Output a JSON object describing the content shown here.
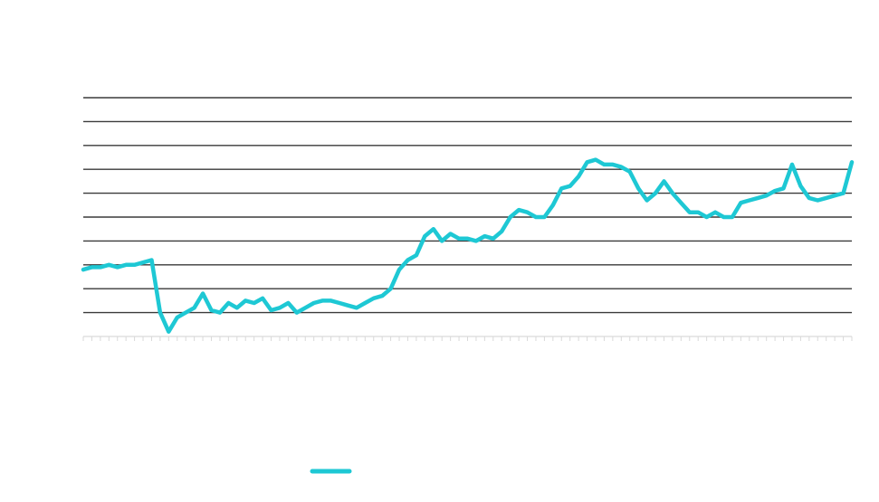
{
  "chart_data": {
    "type": "line",
    "title": "",
    "xlabel": "",
    "ylabel": "",
    "x_points": 91,
    "ylim": [
      0,
      10
    ],
    "grid": true,
    "legend": "bottom-center",
    "series": [
      {
        "color": "#1ec8d4",
        "values": [
          2.8,
          2.9,
          2.9,
          3.0,
          2.9,
          3.0,
          3.0,
          3.1,
          3.2,
          1.0,
          0.2,
          0.8,
          1.0,
          1.2,
          1.8,
          1.1,
          1.0,
          1.4,
          1.2,
          1.5,
          1.4,
          1.6,
          1.1,
          1.2,
          1.4,
          1.0,
          1.2,
          1.4,
          1.5,
          1.5,
          1.4,
          1.3,
          1.2,
          1.4,
          1.6,
          1.7,
          2.0,
          2.8,
          3.2,
          3.4,
          4.2,
          4.5,
          4.0,
          4.3,
          4.1,
          4.1,
          4.0,
          4.2,
          4.1,
          4.4,
          5.0,
          5.3,
          5.2,
          5.0,
          5.0,
          5.5,
          6.2,
          6.3,
          6.7,
          7.3,
          7.4,
          7.2,
          7.2,
          7.1,
          6.9,
          6.2,
          5.7,
          6.0,
          6.5,
          6.0,
          5.6,
          5.2,
          5.2,
          5.0,
          5.2,
          5.0,
          5.0,
          5.6,
          5.7,
          5.8,
          5.9,
          6.1,
          6.2,
          7.2,
          6.3,
          5.8,
          5.7,
          5.8,
          5.9,
          6.0,
          7.3
        ]
      }
    ]
  }
}
